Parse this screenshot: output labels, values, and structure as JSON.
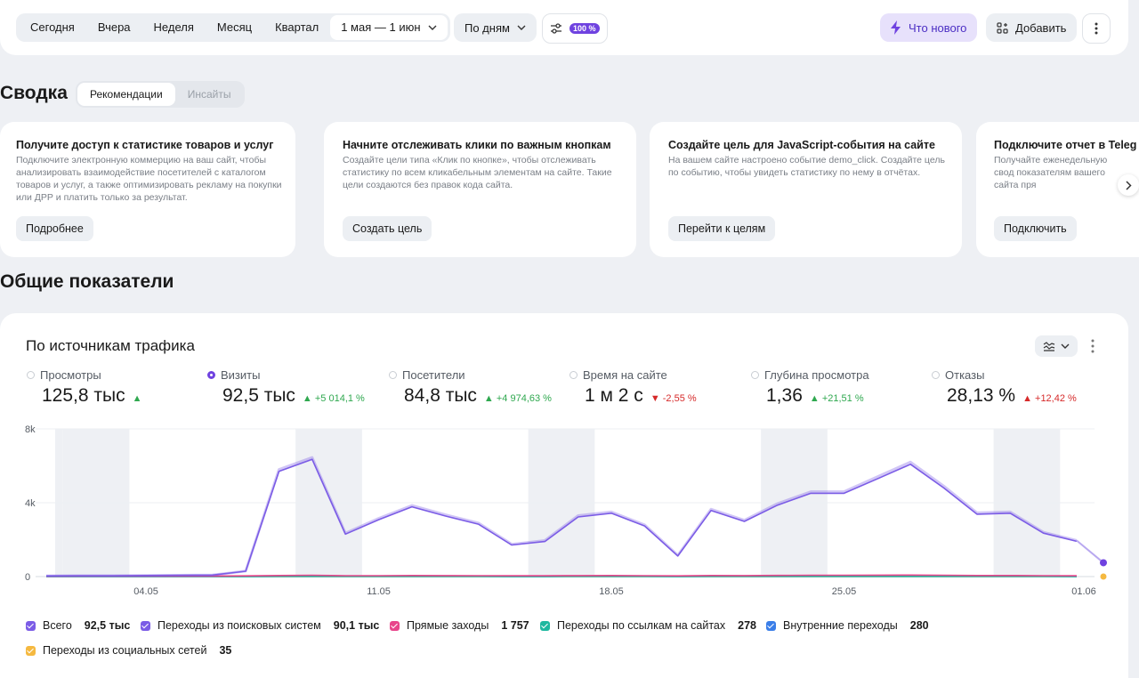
{
  "toolbar": {
    "periods": [
      "Сегодня",
      "Вчера",
      "Неделя",
      "Месяц",
      "Квартал"
    ],
    "date_range": "1 мая — 1 июн",
    "grouping": "По дням",
    "sampling_badge": "100 %",
    "whats_new": "Что нового",
    "add": "Добавить"
  },
  "summary": {
    "title": "Сводка",
    "tabs": [
      "Рекомендации",
      "Инсайты"
    ],
    "active_tab": "Рекомендации",
    "cards": [
      {
        "title": "Получите доступ к статистике товаров и услуг",
        "text": "Подключите электронную коммерцию на ваш сайт, чтобы анализировать взаимодействие посетителей с каталогом товаров и услуг, а также оптимизировать рекламу на покупки или ДРР и платить только за результат.",
        "button": "Подробнее"
      },
      {
        "title": "Начните отслеживать клики по важным кнопкам",
        "text": "Создайте цели типа «Клик по кнопке», чтобы отслеживать статистику по всем кликабельным элементам на сайте. Такие цели создаются без правок кода сайта.",
        "button": "Создать цель"
      },
      {
        "title": "Создайте цель для JavaScript-события на сайте",
        "text": "На вашем сайте настроено событие demo_click. Создайте цель по событию, чтобы увидеть статистику по нему в отчётах.",
        "button": "Перейти к целям"
      },
      {
        "title": "Подключите отчет в Teleg",
        "text": "Получайте еженедельную свод показателям вашего сайта пря",
        "button": "Подключить"
      }
    ]
  },
  "overview": {
    "title": "Общие показатели",
    "panel_title": "По источникам трафика",
    "metrics": [
      {
        "label": "Просмотры",
        "value": "125,8 тыс",
        "delta": "",
        "dir": "up",
        "selected": false
      },
      {
        "label": "Визиты",
        "value": "92,5 тыс",
        "delta": "+5 014,1 %",
        "dir": "up",
        "selected": true
      },
      {
        "label": "Посетители",
        "value": "84,8 тыс",
        "delta": "+4 974,63 %",
        "dir": "up",
        "selected": false
      },
      {
        "label": "Время на сайте",
        "value": "1 м 2 с",
        "delta": "-2,55 %",
        "dir": "down",
        "selected": false
      },
      {
        "label": "Глубина просмотра",
        "value": "1,36",
        "delta": "+21,51 %",
        "dir": "up",
        "selected": false
      },
      {
        "label": "Отказы",
        "value": "28,13 %",
        "delta": "+12,42 %",
        "dir": "down",
        "selected": false
      }
    ],
    "legend": [
      {
        "name": "Всего",
        "value": "92,5 тыс",
        "color": "#7b5ce6"
      },
      {
        "name": "Переходы из поисковых систем",
        "value": "90,1 тыс",
        "color": "#7b5ce6"
      },
      {
        "name": "Прямые заходы",
        "value": "1 757",
        "color": "#e8458b"
      },
      {
        "name": "Переходы по ссылкам на сайтах",
        "value": "278",
        "color": "#1fb8a0"
      },
      {
        "name": "Внутренние переходы",
        "value": "280",
        "color": "#3a7ee8"
      },
      {
        "name": "Переходы из социальных сетей",
        "value": "35",
        "color": "#f5b940"
      }
    ]
  },
  "chart_data": {
    "type": "line",
    "x_ticks": [
      "04.05",
      "11.05",
      "18.05",
      "25.05",
      "01.06"
    ],
    "y_ticks": [
      "0",
      "4k",
      "8k"
    ],
    "ylim": [
      0,
      8000
    ],
    "x": [
      "01.05",
      "02.05",
      "03.05",
      "04.05",
      "05.05",
      "06.05",
      "07.05",
      "08.05",
      "09.05",
      "10.05",
      "11.05",
      "12.05",
      "13.05",
      "14.05",
      "15.05",
      "16.05",
      "17.05",
      "18.05",
      "19.05",
      "20.05",
      "21.05",
      "22.05",
      "23.05",
      "24.05",
      "25.05",
      "26.05",
      "27.05",
      "28.05",
      "29.05",
      "30.05",
      "31.05",
      "01.06"
    ],
    "series": [
      {
        "name": "Всего",
        "color": "#7b5ce6",
        "values": [
          40,
          50,
          50,
          60,
          70,
          80,
          300,
          5800,
          6450,
          2350,
          3150,
          3850,
          3350,
          2900,
          1750,
          1950,
          3300,
          3500,
          2800,
          1150,
          3650,
          3050,
          3950,
          4600,
          4600,
          5400,
          6200,
          4900,
          3450,
          3500,
          2400,
          1950
        ]
      },
      {
        "name": "Переходы из поисковых систем",
        "color": "#7b5ce6",
        "values": [
          40,
          50,
          50,
          60,
          70,
          80,
          290,
          5700,
          6350,
          2300,
          3080,
          3780,
          3280,
          2840,
          1710,
          1900,
          3230,
          3430,
          2740,
          1120,
          3580,
          2990,
          3870,
          4510,
          4510,
          5290,
          6080,
          4800,
          3380,
          3430,
          2350,
          1910
        ]
      },
      {
        "name": "Прямые заходы",
        "color": "#e8458b",
        "values": [
          20,
          25,
          25,
          30,
          30,
          30,
          40,
          60,
          70,
          50,
          50,
          60,
          55,
          50,
          45,
          45,
          55,
          60,
          50,
          40,
          60,
          55,
          65,
          70,
          70,
          75,
          80,
          70,
          60,
          60,
          50,
          45
        ]
      },
      {
        "name": "Переходы по ссылкам на сайтах",
        "color": "#1fb8a0",
        "values": [
          5,
          5,
          5,
          5,
          5,
          5,
          6,
          10,
          12,
          8,
          8,
          9,
          8,
          8,
          7,
          7,
          9,
          9,
          8,
          6,
          9,
          8,
          10,
          10,
          10,
          11,
          12,
          10,
          9,
          9,
          8,
          7
        ]
      },
      {
        "name": "Внутренние переходы",
        "color": "#3a7ee8",
        "values": [
          5,
          5,
          5,
          5,
          5,
          5,
          6,
          10,
          12,
          8,
          8,
          9,
          8,
          8,
          7,
          7,
          9,
          9,
          8,
          6,
          9,
          8,
          10,
          10,
          10,
          11,
          12,
          10,
          9,
          9,
          8,
          7
        ]
      },
      {
        "name": "Переходы из социальных сетей",
        "color": "#f5b940",
        "values": [
          1,
          1,
          1,
          1,
          1,
          1,
          1,
          2,
          2,
          1,
          1,
          1,
          1,
          1,
          1,
          1,
          1,
          1,
          1,
          1,
          1,
          1,
          2,
          2,
          2,
          2,
          2,
          2,
          1,
          1,
          1,
          1
        ]
      }
    ],
    "partial_last_value": 750
  }
}
